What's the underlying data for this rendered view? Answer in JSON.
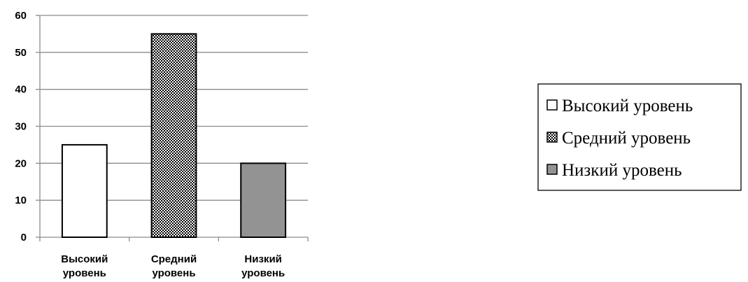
{
  "chart_data": {
    "type": "bar",
    "categories": [
      [
        "Высокий",
        "уровень"
      ],
      [
        "Средний",
        "уровень"
      ],
      [
        "Низкий",
        "уровень"
      ]
    ],
    "values": [
      25,
      55,
      20
    ],
    "ylim": [
      0,
      60
    ],
    "yticks": [
      0,
      10,
      20,
      30,
      40,
      50,
      60
    ],
    "grid": true,
    "legend": {
      "placement": "right",
      "entries": [
        "Высокий уровень",
        "Средний уровень",
        "Низкий уровень"
      ]
    },
    "fills": [
      "white",
      "checkered",
      "#939393"
    ]
  }
}
